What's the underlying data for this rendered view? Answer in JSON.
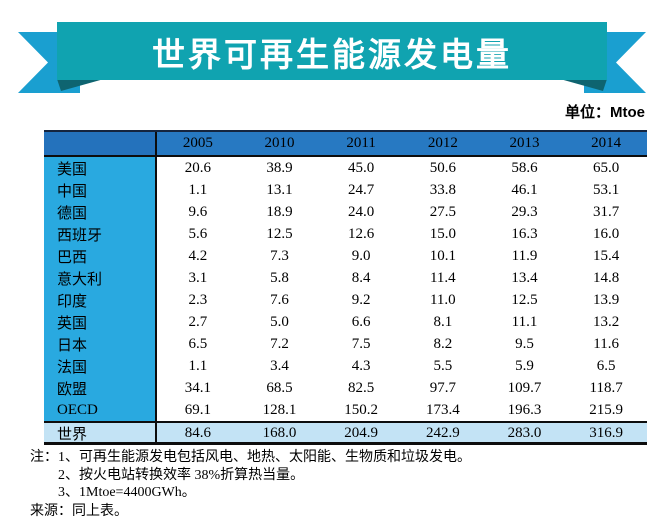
{
  "banner": {
    "title": "世界可再生能源发电量"
  },
  "unit_label": "单位：Mtoe",
  "notes": {
    "prefix": "注：",
    "items": [
      "1、可再生能源发电包括风电、地热、太阳能、生物质和垃圾发电。",
      "2、按火电站转换效率 38%折算热当量。",
      "3、1Mtoe=4400GWh。"
    ],
    "source": "来源：同上表。"
  },
  "colors": {
    "banner_band": "#10A3B0",
    "banner_tail": "#1A9FD0",
    "banner_fold": "#0E6470",
    "header_row": "#2779C2",
    "header_corner": "#2472BC",
    "label_column": "#29A9E0",
    "total_row_bg": "#C3E3F5",
    "border": "#0d0d0d"
  },
  "chart_data": {
    "type": "table",
    "title": "世界可再生能源发电量",
    "unit": "Mtoe",
    "columns": [
      "2005",
      "2010",
      "2011",
      "2012",
      "2013",
      "2014"
    ],
    "rows": [
      {
        "label": "美国",
        "values": [
          "20.6",
          "38.9",
          "45.0",
          "50.6",
          "58.6",
          "65.0"
        ]
      },
      {
        "label": "中国",
        "values": [
          "1.1",
          "13.1",
          "24.7",
          "33.8",
          "46.1",
          "53.1"
        ]
      },
      {
        "label": "德国",
        "values": [
          "9.6",
          "18.9",
          "24.0",
          "27.5",
          "29.3",
          "31.7"
        ]
      },
      {
        "label": "西班牙",
        "values": [
          "5.6",
          "12.5",
          "12.6",
          "15.0",
          "16.3",
          "16.0"
        ]
      },
      {
        "label": "巴西",
        "values": [
          "4.2",
          "7.3",
          "9.0",
          "10.1",
          "11.9",
          "15.4"
        ]
      },
      {
        "label": "意大利",
        "values": [
          "3.1",
          "5.8",
          "8.4",
          "11.4",
          "13.4",
          "14.8"
        ]
      },
      {
        "label": "印度",
        "values": [
          "2.3",
          "7.6",
          "9.2",
          "11.0",
          "12.5",
          "13.9"
        ]
      },
      {
        "label": "英国",
        "values": [
          "2.7",
          "5.0",
          "6.6",
          "8.1",
          "11.1",
          "13.2"
        ]
      },
      {
        "label": "日本",
        "values": [
          "6.5",
          "7.2",
          "7.5",
          "8.2",
          "9.5",
          "11.6"
        ]
      },
      {
        "label": "法国",
        "values": [
          "1.1",
          "3.4",
          "4.3",
          "5.5",
          "5.9",
          "6.5"
        ]
      },
      {
        "label": "欧盟",
        "values": [
          "34.1",
          "68.5",
          "82.5",
          "97.7",
          "109.7",
          "118.7"
        ]
      },
      {
        "label": "OECD",
        "values": [
          "69.1",
          "128.1",
          "150.2",
          "173.4",
          "196.3",
          "215.9"
        ]
      }
    ],
    "total_row": {
      "label": "世界",
      "values": [
        "84.6",
        "168.0",
        "204.9",
        "242.9",
        "283.0",
        "316.9"
      ]
    }
  }
}
